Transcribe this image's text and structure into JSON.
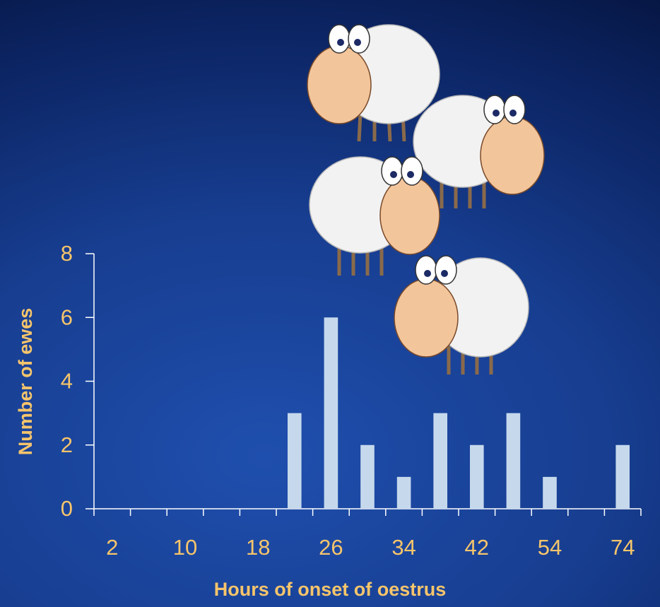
{
  "chart_data": {
    "type": "bar",
    "x_label": "Hours of onset of oestrus",
    "y_label": "Number of ewes",
    "categories": [
      "2",
      null,
      "10",
      null,
      "18",
      null,
      "26",
      null,
      "34",
      null,
      "42",
      null,
      "54",
      null,
      "74"
    ],
    "values": [
      0,
      0,
      0,
      0,
      0,
      3,
      6,
      2,
      1,
      3,
      2,
      3,
      1,
      0,
      2
    ],
    "color": "#c6d9ec",
    "ylim": [
      0,
      8
    ],
    "yticks": [
      0,
      2,
      4,
      6,
      8
    ],
    "grid": false
  }
}
